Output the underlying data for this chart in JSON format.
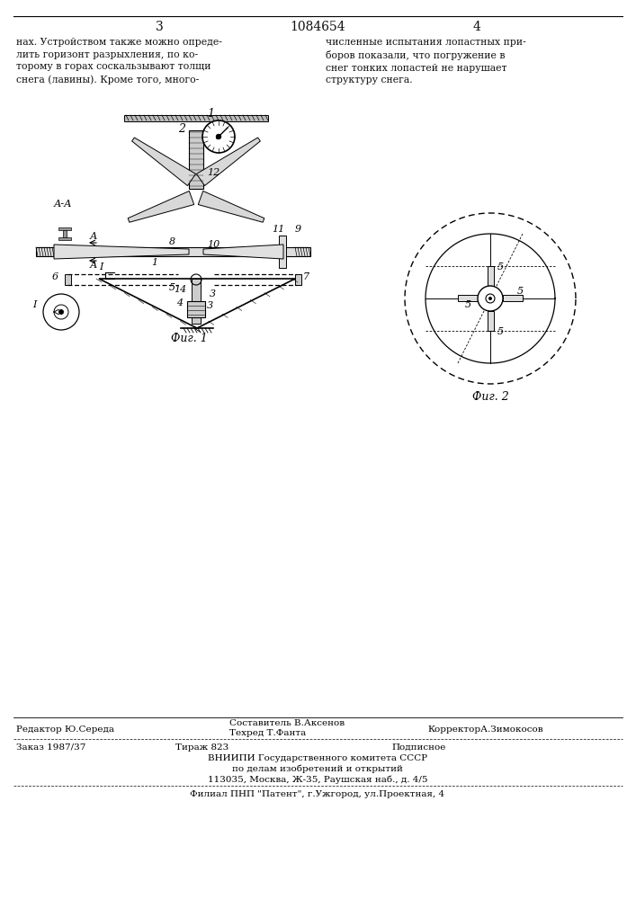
{
  "bg_color": "#ffffff",
  "header": {
    "left_num": "3",
    "center_num": "1084654",
    "right_num": "4"
  },
  "left_text": "нах. Устройством также можно опреде-\nлить горизонт разрыхления, по ко-\nторому в горах соскальзывают толщи\nснега (лавины). Кроме того, много-",
  "right_text": "численные испытания лопастных при-\nборов показали, что погружение в\nснег тонких лопастей не нарушает\nструктуру снега.",
  "fig1_caption": "Фиг. 1",
  "fig2_caption": "Фиг. 2",
  "footer_line1_col1": "Редактор Ю.Середа",
  "footer_line1_col2_top": "Составитель В.Аксенов",
  "footer_line1_col2_bot": "Техред Т.Фанта",
  "footer_line1_col3": "КорректорА.Зимокосов",
  "footer_line2_col1": "Заказ 1987/37",
  "footer_line2_col2": "Тираж 823",
  "footer_line2_col3": "Подписное",
  "footer_line3": "ВНИИПИ Государственного комитета СССР",
  "footer_line4": "по делам изобретений и открытий",
  "footer_line5": "113035, Москва, Ж-35, Раушская наб., д. 4/5",
  "footer_line6": "Филиал ПНП \"Патент\", г.Ужгород, ул.Проектная, 4",
  "text_color": "#111111"
}
